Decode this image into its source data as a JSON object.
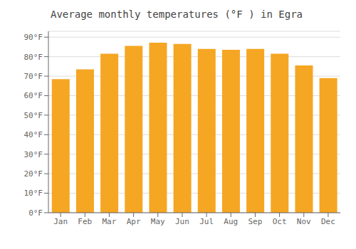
{
  "chart_data": {
    "type": "bar",
    "title": "Average monthly temperatures (°F ) in Egra",
    "categories": [
      "Jan",
      "Feb",
      "Mar",
      "Apr",
      "May",
      "Jun",
      "Jul",
      "Aug",
      "Sep",
      "Oct",
      "Nov",
      "Dec"
    ],
    "values": [
      68.5,
      73.5,
      81.5,
      85.5,
      87.2,
      86.5,
      84.0,
      83.5,
      84.0,
      81.5,
      75.5,
      69.0
    ],
    "color": "#F5A623",
    "ylim": [
      0,
      93
    ],
    "yticks": [
      {
        "value": 0,
        "label": "0°F"
      },
      {
        "value": 10,
        "label": "10°F"
      },
      {
        "value": 20,
        "label": "20°F"
      },
      {
        "value": 30,
        "label": "30°F"
      },
      {
        "value": 40,
        "label": "40°F"
      },
      {
        "value": 50,
        "label": "50°F"
      },
      {
        "value": 60,
        "label": "60°F"
      },
      {
        "value": 70,
        "label": "70°F"
      },
      {
        "value": 80,
        "label": "80°F"
      },
      {
        "value": 90,
        "label": "90°F"
      }
    ],
    "grid": true
  }
}
